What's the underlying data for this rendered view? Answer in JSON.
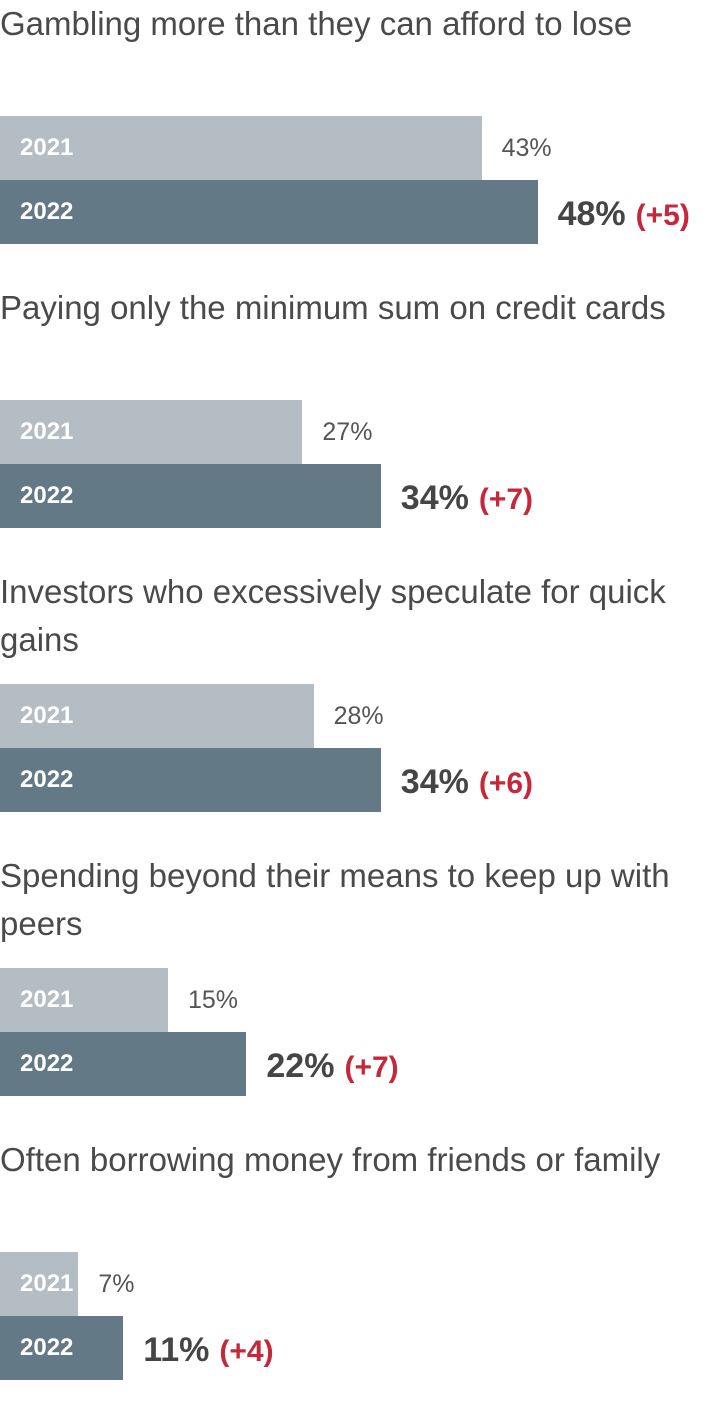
{
  "chart_data": {
    "type": "bar",
    "orientation": "horizontal",
    "unit": "%",
    "series_labels": [
      "2021",
      "2022"
    ],
    "colors": {
      "bar_2021": "#b3bdc3",
      "bar_2022": "#647986",
      "change": "#c4283b",
      "title_text": "#4a4a4a"
    },
    "xlim": [
      0,
      60
    ],
    "categories": [
      {
        "label": "Gambling more than they can afford to lose",
        "values": [
          43,
          48
        ],
        "value_labels": [
          "43%",
          "48%"
        ],
        "change_label": "(+5)"
      },
      {
        "label": "Paying only the minimum sum on credit cards",
        "values": [
          27,
          34
        ],
        "value_labels": [
          "27%",
          "34%"
        ],
        "change_label": "(+7)"
      },
      {
        "label": "Investors who excessively speculate for quick gains",
        "values": [
          28,
          34
        ],
        "value_labels": [
          "28%",
          "34%"
        ],
        "change_label": "(+6)"
      },
      {
        "label": "Spending beyond their means to keep up with peers",
        "values": [
          15,
          22
        ],
        "value_labels": [
          "15%",
          "22%"
        ],
        "change_label": "(+7)"
      },
      {
        "label": "Often borrowing money from friends or family",
        "values": [
          7,
          11
        ],
        "value_labels": [
          "7%",
          "11%"
        ],
        "change_label": "(+4)"
      }
    ]
  }
}
